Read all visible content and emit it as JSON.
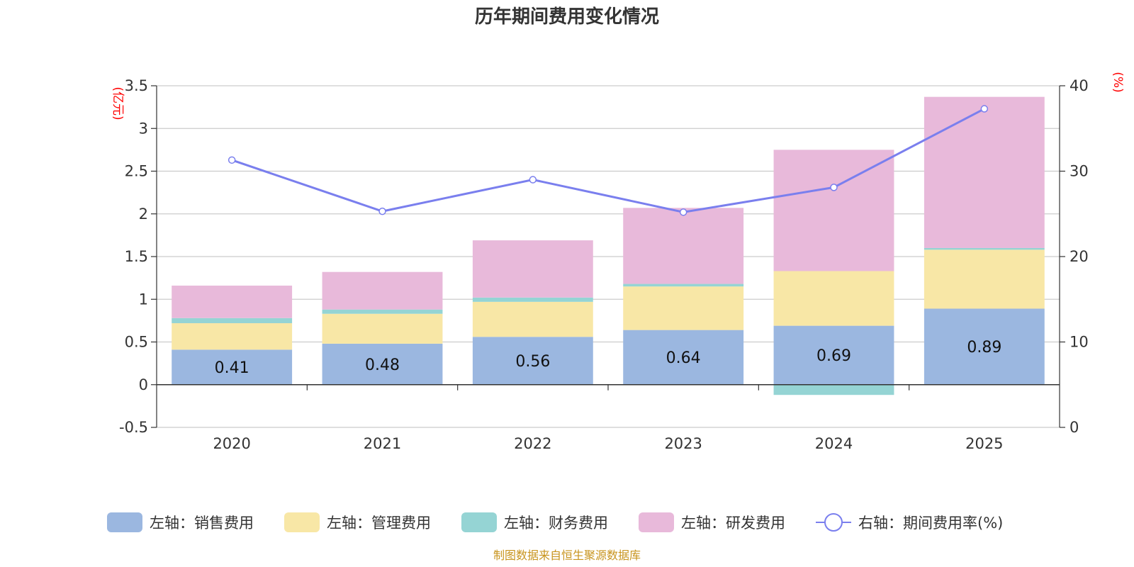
{
  "chart_data": {
    "type": "bar",
    "title": "历年期间费用变化情况",
    "categories": [
      "2020",
      "2021",
      "2022",
      "2023",
      "2024",
      "2025"
    ],
    "left_axis": {
      "unit": "(亿元)",
      "min": -0.5,
      "max": 3.5,
      "ticks": [
        -0.5,
        0,
        0.5,
        1,
        1.5,
        2,
        2.5,
        3,
        3.5
      ]
    },
    "right_axis": {
      "unit": "(%)",
      "min": 0,
      "max": 40,
      "ticks": [
        0,
        10,
        20,
        30,
        40
      ]
    },
    "series": [
      {
        "name": "左轴：销售费用",
        "axis": "left",
        "kind": "bar",
        "color": "#9bb7e0",
        "values": [
          0.41,
          0.48,
          0.56,
          0.64,
          0.69,
          0.89
        ],
        "show_labels": true
      },
      {
        "name": "左轴：管理费用",
        "axis": "left",
        "kind": "bar",
        "color": "#f8e7a6",
        "values": [
          0.31,
          0.35,
          0.41,
          0.51,
          0.64,
          0.69
        ],
        "show_labels": false
      },
      {
        "name": "左轴：财务费用",
        "axis": "left",
        "kind": "bar",
        "color": "#95d4d4",
        "values": [
          0.06,
          0.05,
          0.05,
          0.03,
          -0.12,
          0.02
        ],
        "show_labels": false
      },
      {
        "name": "左轴：研发费用",
        "axis": "left",
        "kind": "bar",
        "color": "#e8b9da",
        "values": [
          0.38,
          0.44,
          0.67,
          0.89,
          1.42,
          1.77
        ],
        "show_labels": false
      },
      {
        "name": "右轴：期间费用率(%)",
        "axis": "right",
        "kind": "line",
        "color": "#7a7fee",
        "values": [
          31.3,
          25.3,
          29.0,
          25.2,
          28.1,
          37.3
        ]
      }
    ],
    "source": "制图数据来自恒生聚源数据库"
  }
}
